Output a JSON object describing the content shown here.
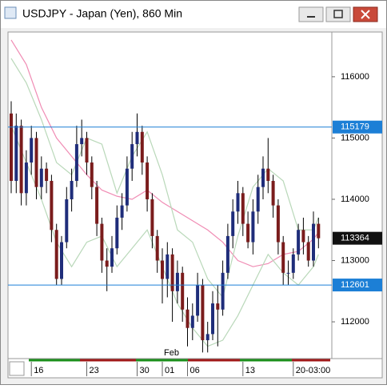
{
  "window_title": "USDJPY - Japan (Yen), 860 Min",
  "chart_data": {
    "type": "candlestick",
    "categories": [
      null,
      null,
      null,
      null,
      "16",
      null,
      null,
      null,
      null,
      null,
      null,
      null,
      null,
      null,
      null,
      "23",
      null,
      null,
      null,
      null,
      null,
      null,
      null,
      null,
      null,
      "30",
      null,
      null,
      null,
      null,
      "01",
      null,
      null,
      null,
      null,
      "06",
      null,
      null,
      null,
      null,
      null,
      null,
      null,
      null,
      null,
      null,
      "13",
      null,
      null,
      null,
      null,
      null,
      null,
      null,
      null,
      null,
      "20-03:00",
      null,
      null,
      null,
      null,
      null
    ],
    "month_label": {
      "index": 30,
      "label": "Feb"
    },
    "open": [
      115400,
      114300,
      115200,
      114100,
      114600,
      115000,
      114200,
      114500,
      114300,
      113500,
      112700,
      113300,
      114000,
      114300,
      114900,
      115000,
      114600,
      114200,
      113600,
      113000,
      112900,
      113200,
      113700,
      113900,
      114500,
      114900,
      115100,
      114600,
      114000,
      113400,
      113000,
      112700,
      113100,
      112500,
      112800,
      112200,
      111900,
      112100,
      112600,
      111700,
      111800,
      112300,
      112200,
      112800,
      113400,
      113800,
      114100,
      113600,
      113300,
      113800,
      114200,
      114500,
      114300,
      113900,
      113300,
      112800,
      112800,
      113100,
      113500,
      113300,
      113000,
      113600
    ],
    "high": [
      115600,
      115400,
      115300,
      114800,
      115200,
      115100,
      114700,
      114600,
      114400,
      113600,
      113400,
      114200,
      114500,
      115200,
      115300,
      115100,
      114700,
      114300,
      113700,
      113200,
      113400,
      113900,
      114100,
      114700,
      115100,
      115400,
      115200,
      114700,
      114100,
      113500,
      113200,
      113300,
      113200,
      113000,
      112900,
      112400,
      112300,
      112800,
      112700,
      112000,
      112500,
      112600,
      113000,
      113600,
      114000,
      114300,
      114200,
      113800,
      114000,
      114400,
      114700,
      115000,
      114400,
      114000,
      113400,
      113000,
      113200,
      113600,
      113700,
      113400,
      113800,
      113700
    ],
    "low": [
      114100,
      114100,
      113900,
      113900,
      114400,
      114000,
      114000,
      114100,
      113300,
      112600,
      112600,
      113200,
      113800,
      114200,
      114700,
      114400,
      114000,
      113400,
      112800,
      112500,
      112800,
      113100,
      113500,
      113800,
      114300,
      114700,
      114400,
      113800,
      113200,
      112800,
      112300,
      112400,
      112000,
      112300,
      112000,
      111600,
      111700,
      112000,
      111500,
      111500,
      111700,
      111600,
      112100,
      112700,
      113200,
      113600,
      113400,
      113200,
      113100,
      113600,
      114000,
      114100,
      113700,
      113100,
      112600,
      112600,
      112700,
      113000,
      113100,
      112900,
      112900,
      113200
    ],
    "close": [
      114300,
      115200,
      114100,
      114600,
      115000,
      114200,
      114500,
      114300,
      113500,
      112700,
      113300,
      114000,
      114300,
      114900,
      115000,
      114600,
      114200,
      113600,
      113000,
      112900,
      113200,
      113700,
      113900,
      114500,
      114900,
      115100,
      114600,
      114000,
      113400,
      113000,
      112700,
      113100,
      112500,
      112800,
      112200,
      111900,
      112100,
      112600,
      111700,
      111800,
      112300,
      112200,
      112800,
      113400,
      113800,
      114100,
      113600,
      113300,
      113800,
      114200,
      114500,
      114300,
      113900,
      113300,
      112800,
      112800,
      113100,
      113500,
      113300,
      113000,
      113600,
      113364
    ],
    "up_color": "#1f2d7a",
    "down_color": "#7a1c1c",
    "overlays": [
      {
        "color": "#f08cb4",
        "x": [
          0,
          3,
          6,
          9,
          12,
          15,
          18,
          21,
          24,
          27,
          30,
          33,
          36,
          39,
          42,
          45,
          48,
          51,
          54,
          57,
          60,
          61
        ],
        "values": [
          116600,
          116200,
          115500,
          115000,
          114700,
          114400,
          114150,
          114050,
          114000,
          114150,
          113950,
          113800,
          113650,
          113500,
          113300,
          113000,
          112900,
          112950,
          113100,
          113150,
          113350,
          113460
        ]
      },
      {
        "color": "#b9d8b9",
        "x": [
          0,
          3,
          6,
          9,
          12,
          15,
          18,
          21,
          24,
          27,
          30,
          33,
          36,
          39,
          42,
          45,
          48,
          51,
          54,
          57,
          60,
          61
        ],
        "values": [
          116300,
          115900,
          115300,
          114600,
          114400,
          115000,
          114900,
          114100,
          114700,
          115100,
          114400,
          113500,
          113300,
          112700,
          112400,
          113400,
          114200,
          114500,
          114300,
          113500,
          113500,
          113700
        ]
      },
      {
        "color": "#b9d8b9",
        "x": [
          0,
          3,
          6,
          9,
          12,
          15,
          18,
          21,
          24,
          27,
          30,
          33,
          36,
          39,
          42,
          45,
          48,
          51,
          54,
          57,
          60,
          61
        ],
        "values": [
          115200,
          114600,
          114000,
          113300,
          112900,
          113300,
          113400,
          112900,
          113200,
          113500,
          112900,
          112300,
          111900,
          111600,
          111700,
          112100,
          112600,
          113100,
          112800,
          112600,
          112900,
          113100
        ]
      }
    ],
    "hlines": [
      115179,
      112601
    ],
    "hline_color": "#1c7fd6",
    "last_price": 113364,
    "ylim": [
      111400,
      116730
    ],
    "yticks": [
      112000,
      113000,
      114000,
      115000,
      116000
    ]
  }
}
